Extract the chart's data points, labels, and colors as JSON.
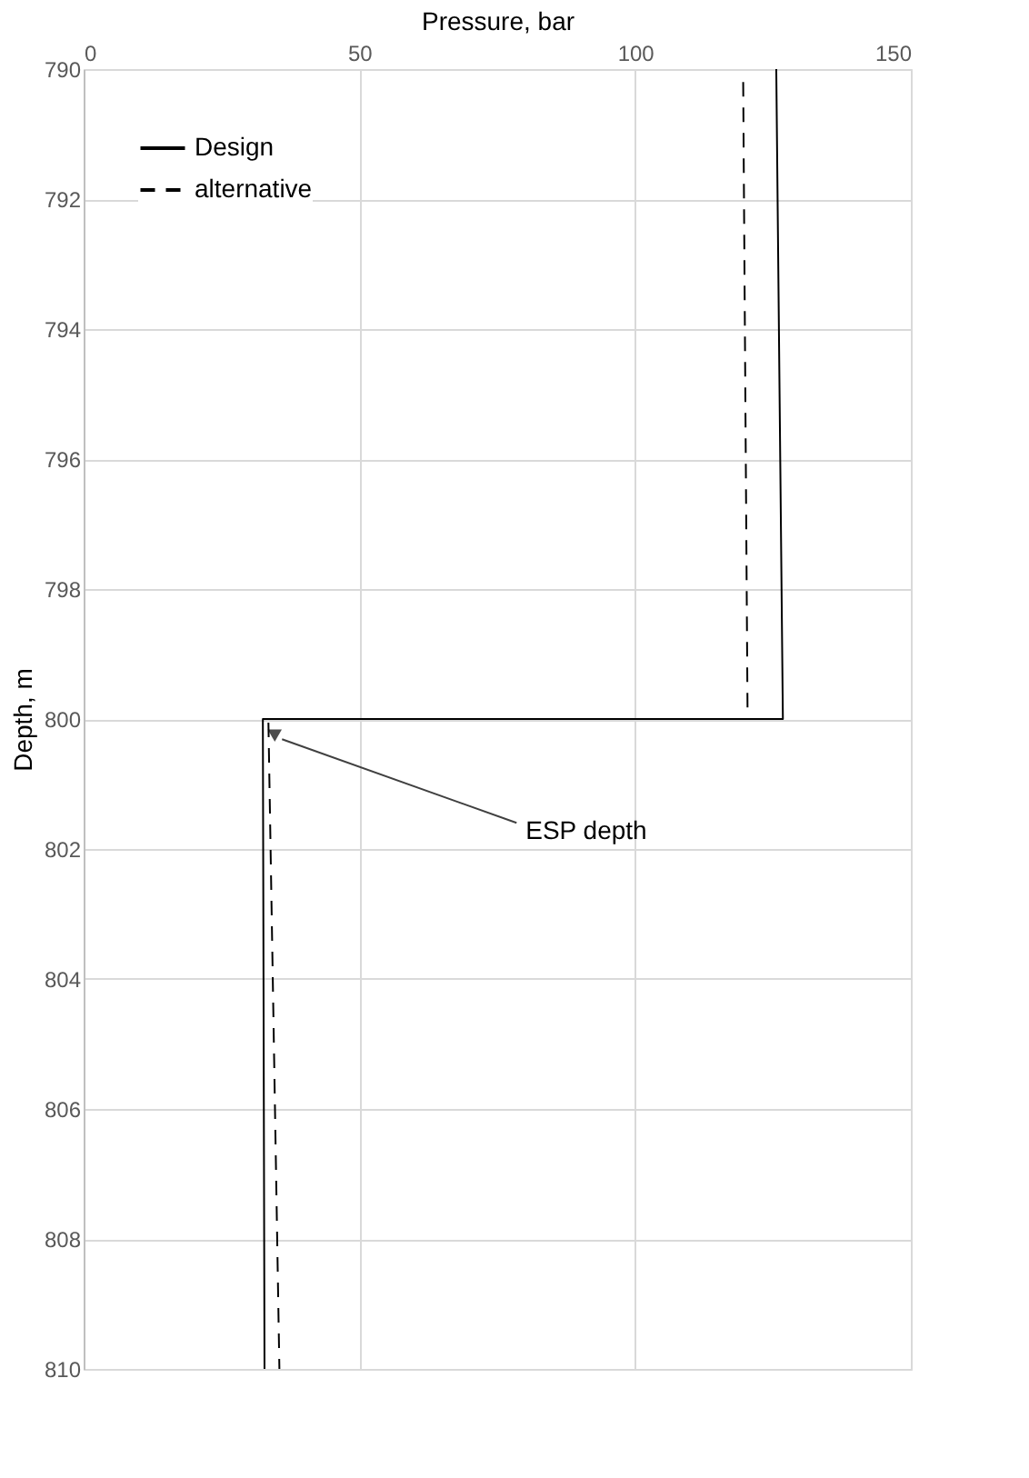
{
  "chart_data": {
    "type": "line",
    "xlabel": "Pressure, bar",
    "ylabel": "Depth, m",
    "xlim": [
      0,
      150
    ],
    "xticks": [
      0,
      50,
      100,
      150
    ],
    "ylim": [
      810,
      790
    ],
    "yticks": [
      790,
      792,
      794,
      796,
      798,
      800,
      802,
      804,
      806,
      808,
      810
    ],
    "grid": true,
    "legend": "top left",
    "series": [
      {
        "name": "Design",
        "color": "#000000",
        "line_style": "solid",
        "x": [
          125.6,
          126.8,
          32.5,
          32.8
        ],
        "values": [
          790,
          800,
          800,
          810
        ]
      },
      {
        "name": "alternative",
        "color": "#000000",
        "line_style": "dashed",
        "x": [
          119.6,
          120.4,
          33.5,
          35.5
        ],
        "values": [
          790.2,
          800,
          800,
          810
        ]
      }
    ],
    "annotations": [
      {
        "text": "ESP depth",
        "x": 34,
        "y": 800.2
      }
    ]
  }
}
